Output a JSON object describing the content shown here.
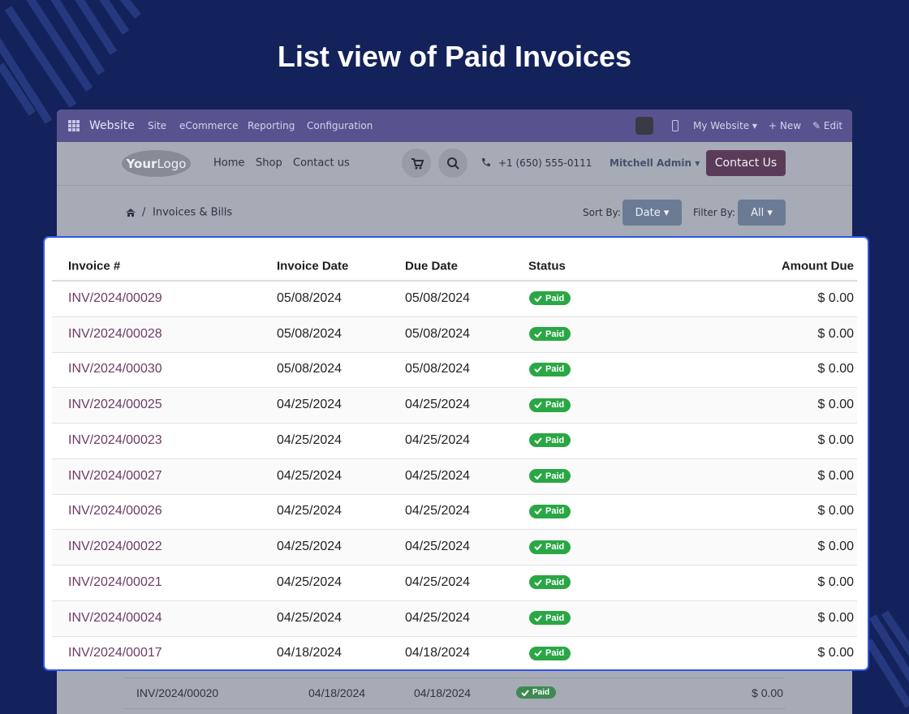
{
  "title": "List view of Paid Invoices",
  "navbar": {
    "app": "Website",
    "menus": [
      "Site",
      "eCommerce",
      "Reporting",
      "Configuration"
    ],
    "my_website": "My Website",
    "new": "New",
    "edit": "Edit"
  },
  "site_header": {
    "logo_bold": "Your",
    "logo_light": "Logo",
    "links": [
      "Home",
      "Shop",
      "Contact us"
    ],
    "phone": "+1 (650) 555-0111",
    "user": "Mitchell Admin",
    "cta": "Contact Us"
  },
  "breadcrumb": {
    "item": "Invoices & Bills",
    "separator": "/"
  },
  "sort": {
    "label": "Sort By:",
    "value": "Date"
  },
  "filter": {
    "label": "Filter By:",
    "value": "All"
  },
  "table": {
    "columns": [
      "Invoice #",
      "Invoice Date",
      "Due Date",
      "Status",
      "Amount Due"
    ],
    "rows": [
      [
        "INV/2024/00029",
        "05/08/2024",
        "05/08/2024",
        "Paid",
        "$ 0.00"
      ],
      [
        "INV/2024/00028",
        "05/08/2024",
        "05/08/2024",
        "Paid",
        "$ 0.00"
      ],
      [
        "INV/2024/00030",
        "05/08/2024",
        "05/08/2024",
        "Paid",
        "$ 0.00"
      ],
      [
        "INV/2024/00025",
        "04/25/2024",
        "04/25/2024",
        "Paid",
        "$ 0.00"
      ],
      [
        "INV/2024/00023",
        "04/25/2024",
        "04/25/2024",
        "Paid",
        "$ 0.00"
      ],
      [
        "INV/2024/00027",
        "04/25/2024",
        "04/25/2024",
        "Paid",
        "$ 0.00"
      ],
      [
        "INV/2024/00026",
        "04/25/2024",
        "04/25/2024",
        "Paid",
        "$ 0.00"
      ],
      [
        "INV/2024/00022",
        "04/25/2024",
        "04/25/2024",
        "Paid",
        "$ 0.00"
      ],
      [
        "INV/2024/00021",
        "04/25/2024",
        "04/25/2024",
        "Paid",
        "$ 0.00"
      ],
      [
        "INV/2024/00024",
        "04/25/2024",
        "04/25/2024",
        "Paid",
        "$ 0.00"
      ],
      [
        "INV/2024/00017",
        "04/18/2024",
        "04/18/2024",
        "Paid",
        "$ 0.00"
      ]
    ]
  },
  "background_row": [
    "INV/2024/00020",
    "04/18/2024",
    "04/18/2024",
    "Paid",
    "$ 0.00"
  ]
}
